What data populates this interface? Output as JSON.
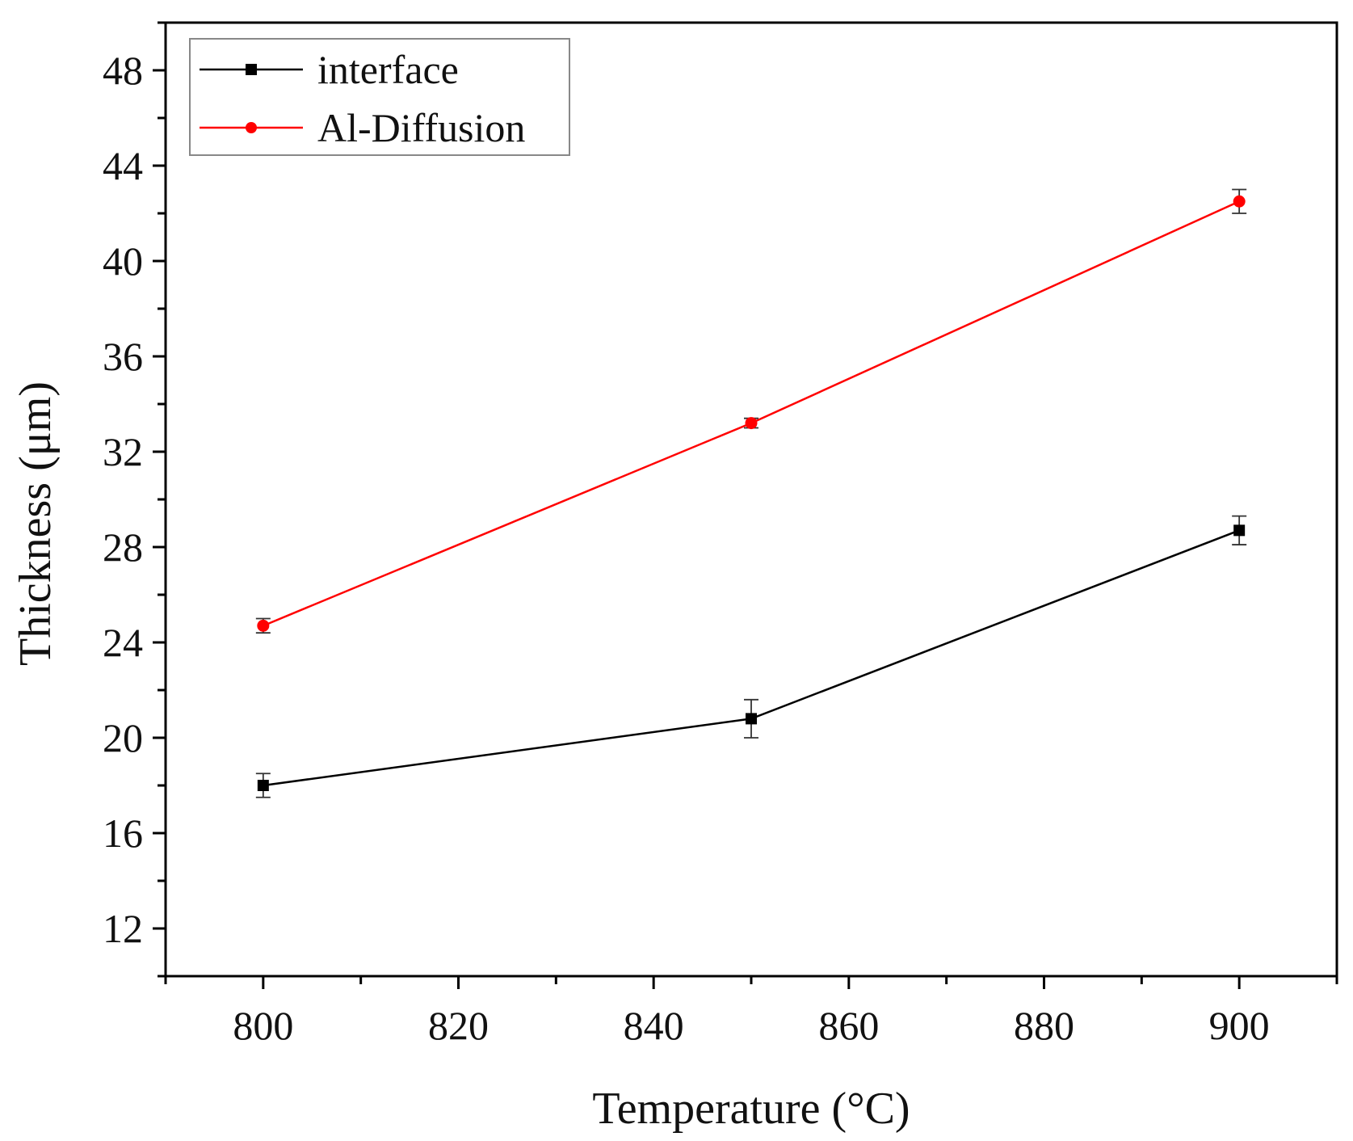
{
  "chart_data": {
    "type": "line",
    "title": "",
    "xlabel": "Temperature (°C)",
    "ylabel": "Thickness (μm)",
    "xlim": [
      790,
      910
    ],
    "ylim": [
      10,
      50
    ],
    "xticks": [
      800,
      820,
      840,
      860,
      880,
      900
    ],
    "xtick_labels": [
      "800",
      "820",
      "840",
      "860",
      "880",
      "900"
    ],
    "yticks": [
      12,
      16,
      20,
      24,
      28,
      32,
      36,
      40,
      44,
      48
    ],
    "ytick_labels": [
      "12",
      "16",
      "20",
      "24",
      "28",
      "32",
      "36",
      "40",
      "44",
      "48"
    ],
    "grid": false,
    "legend_position": "top-left",
    "x": [
      800,
      850,
      900
    ],
    "series": [
      {
        "name": "interface",
        "values": [
          18.0,
          20.8,
          28.7
        ],
        "errors": [
          0.5,
          0.8,
          0.6
        ],
        "color": "#000000",
        "marker": "square"
      },
      {
        "name": "Al-Diffusion",
        "values": [
          24.7,
          33.2,
          42.5
        ],
        "errors": [
          0.3,
          0.2,
          0.5
        ],
        "color": "#ff0000",
        "marker": "circle"
      }
    ]
  }
}
